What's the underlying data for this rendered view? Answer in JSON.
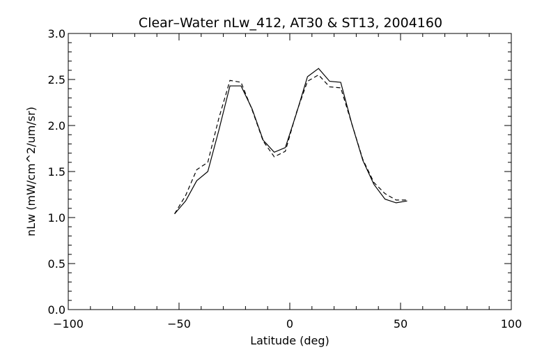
{
  "chart_data": {
    "type": "line",
    "title": "Clear–Water nLw_412, AT30 & ST13, 2004160",
    "xlabel": "Latitude (deg)",
    "ylabel": "nLw (mW/cm^2/um/sr)",
    "xlim": [
      -100,
      100
    ],
    "ylim": [
      0.0,
      3.0
    ],
    "x_ticks": [
      -100,
      -50,
      0,
      50,
      100
    ],
    "x_tick_labels": [
      "−100",
      "−50",
      "0",
      "50",
      "100"
    ],
    "y_ticks": [
      0.0,
      0.5,
      1.0,
      1.5,
      2.0,
      2.5,
      3.0
    ],
    "y_tick_labels": [
      "0.0",
      "0.5",
      "1.0",
      "1.5",
      "2.0",
      "2.5",
      "3.0"
    ],
    "grid": false,
    "series": [
      {
        "style": "solid",
        "x": [
          -52,
          -47,
          -42,
          -37,
          -32,
          -27,
          -22,
          -17,
          -12,
          -7,
          -2,
          3,
          8,
          13,
          18,
          23,
          28,
          33,
          38,
          43,
          48,
          53
        ],
        "y": [
          1.04,
          1.18,
          1.4,
          1.5,
          1.95,
          2.43,
          2.43,
          2.18,
          1.84,
          1.71,
          1.76,
          2.13,
          2.53,
          2.62,
          2.48,
          2.47,
          2.02,
          1.62,
          1.36,
          1.2,
          1.16,
          1.18
        ]
      },
      {
        "style": "dashed",
        "x": [
          -52,
          -47,
          -42,
          -37,
          -32,
          -27,
          -22,
          -17,
          -12,
          -7,
          -2,
          3,
          8,
          13,
          18,
          23,
          28,
          33,
          38,
          43,
          48,
          53
        ],
        "y": [
          1.04,
          1.24,
          1.52,
          1.6,
          2.08,
          2.49,
          2.47,
          2.17,
          1.83,
          1.66,
          1.72,
          2.14,
          2.48,
          2.55,
          2.42,
          2.41,
          2.02,
          1.63,
          1.38,
          1.26,
          1.19,
          1.19
        ]
      }
    ]
  }
}
